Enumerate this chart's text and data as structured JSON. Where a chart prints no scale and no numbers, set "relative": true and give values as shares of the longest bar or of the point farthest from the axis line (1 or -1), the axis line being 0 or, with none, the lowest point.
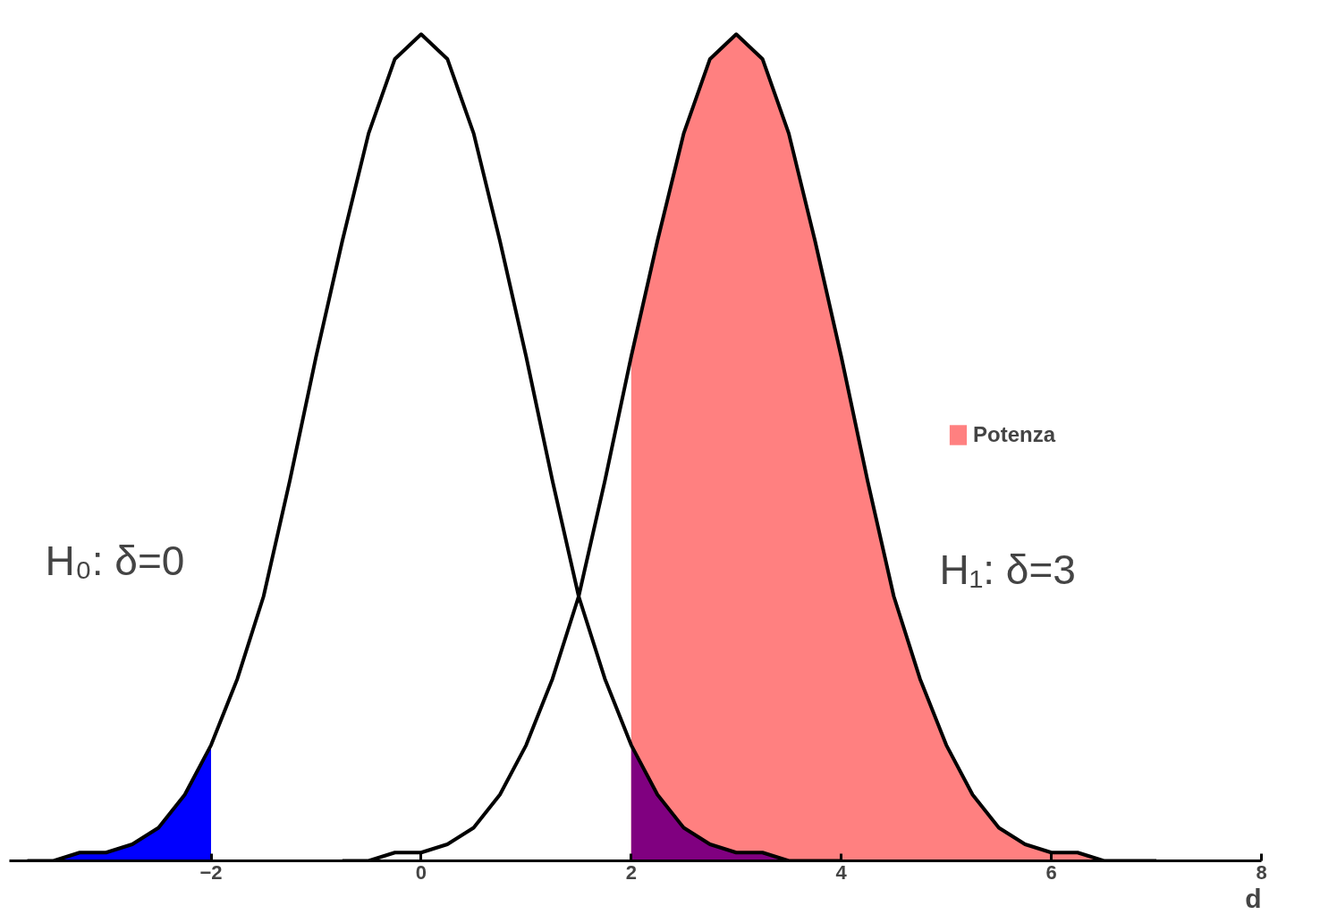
{
  "chart_data": {
    "type": "line",
    "relative": true,
    "xlabel": "d",
    "xlim": [
      -3.92,
      8
    ],
    "xticks": [
      -2,
      0,
      2,
      4,
      6,
      8
    ],
    "grid": false,
    "legend": "right",
    "marker": "none",
    "annotations": [
      "H₀: δ=0",
      "H₁: δ=3"
    ],
    "series": [
      {
        "type": "area",
        "name": "Potenza",
        "color": "#ff8080",
        "x": [
          2,
          2.25,
          2.5,
          2.75,
          3,
          3.25,
          3.5,
          3.75,
          4,
          4.25,
          4.5,
          4.75,
          5,
          5.25,
          5.5,
          5.75,
          6,
          6.25,
          6.5,
          6.75,
          7
        ],
        "values": [
          0.61,
          0.75,
          0.88,
          0.97,
          1,
          0.97,
          0.88,
          0.75,
          0.61,
          0.46,
          0.32,
          0.22,
          0.14,
          0.08,
          0.04,
          0.02,
          0.01,
          0.01,
          0,
          0,
          0
        ]
      },
      {
        "type": "area",
        "color": "#800080",
        "x": [
          2,
          2.25,
          2.5,
          2.75,
          3,
          3.25,
          3.5,
          3.75,
          4
        ],
        "values": [
          0.14,
          0.08,
          0.04,
          0.02,
          0.01,
          0.01,
          0,
          0,
          0
        ]
      },
      {
        "type": "area",
        "color": "#0000ff",
        "x": [
          -3.75,
          -3.5,
          -3.25,
          -3,
          -2.75,
          -2.5,
          -2.25,
          -2
        ],
        "values": [
          0,
          0,
          0.01,
          0.01,
          0.02,
          0.04,
          0.08,
          0.14
        ]
      },
      {
        "color": "#000000",
        "x": [
          -3.75,
          -3.5,
          -3.25,
          -3,
          -2.75,
          -2.5,
          -2.25,
          -2,
          -1.75,
          -1.5,
          -1.25,
          -1,
          -0.75,
          -0.5,
          -0.25,
          0,
          0.25,
          0.5,
          0.75,
          1,
          1.25,
          1.5,
          1.75,
          2,
          2.25,
          2.5,
          2.75,
          3,
          3.25,
          3.5,
          3.75,
          4
        ],
        "values": [
          0,
          0,
          0.01,
          0.01,
          0.02,
          0.04,
          0.08,
          0.14,
          0.22,
          0.32,
          0.46,
          0.61,
          0.75,
          0.88,
          0.97,
          1,
          0.97,
          0.88,
          0.75,
          0.61,
          0.46,
          0.32,
          0.22,
          0.14,
          0.08,
          0.04,
          0.02,
          0.01,
          0.01,
          0,
          0,
          0
        ]
      },
      {
        "color": "#000000",
        "x": [
          -0.75,
          -0.5,
          -0.25,
          0,
          0.25,
          0.5,
          0.75,
          1,
          1.25,
          1.5,
          1.75,
          2,
          2.25,
          2.5,
          2.75,
          3,
          3.25,
          3.5,
          3.75,
          4,
          4.25,
          4.5,
          4.75,
          5,
          5.25,
          5.5,
          5.75,
          6,
          6.25,
          6.5,
          6.75,
          7
        ],
        "values": [
          0,
          0,
          0.01,
          0.01,
          0.02,
          0.04,
          0.08,
          0.14,
          0.22,
          0.32,
          0.46,
          0.61,
          0.75,
          0.88,
          0.97,
          1,
          0.97,
          0.88,
          0.75,
          0.61,
          0.46,
          0.32,
          0.22,
          0.14,
          0.08,
          0.04,
          0.02,
          0.01,
          0.01,
          0,
          0,
          0
        ]
      }
    ]
  }
}
